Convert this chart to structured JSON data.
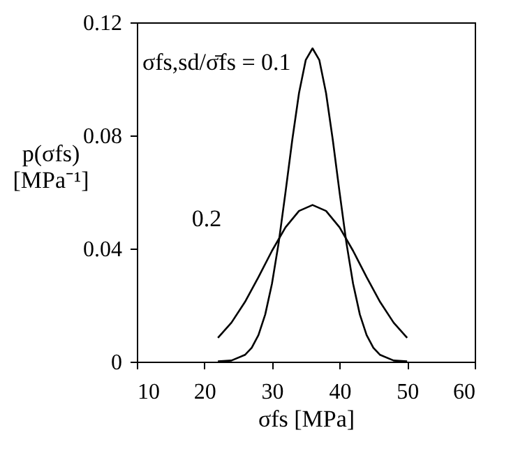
{
  "chart_data": {
    "type": "line",
    "xlabel": "σfs [MPa]",
    "ylabel": "p(σfs) [MPa⁻¹]",
    "xlim": [
      10,
      60
    ],
    "ylim": [
      0,
      0.12
    ],
    "xticks": [
      10,
      20,
      30,
      40,
      50,
      60
    ],
    "yticks": [
      {
        "value": 0,
        "label": "0"
      },
      0.04,
      0.08,
      0.12
    ],
    "grid": false,
    "marker": "none",
    "line_style": "solid",
    "series": [
      {
        "color": "#000000",
        "x": [
          22,
          24,
          26,
          27,
          28,
          29,
          30,
          31,
          32,
          33,
          34,
          35,
          36,
          37,
          38,
          39,
          40,
          41,
          42,
          43,
          44,
          45,
          46,
          48,
          50
        ],
        "values": [
          0.0001,
          0.0004,
          0.0024,
          0.0049,
          0.0094,
          0.0167,
          0.0276,
          0.0422,
          0.0599,
          0.0784,
          0.095,
          0.1067,
          0.1108,
          0.1067,
          0.095,
          0.0784,
          0.0599,
          0.0422,
          0.0276,
          0.0167,
          0.0094,
          0.0049,
          0.0024,
          0.0004,
          0.0001
        ]
      },
      {
        "color": "#000000",
        "x": [
          22,
          24,
          26,
          28,
          30,
          32,
          34,
          36,
          38,
          40,
          42,
          44,
          46,
          48,
          50
        ],
        "values": [
          0.0084,
          0.0138,
          0.0211,
          0.0299,
          0.0392,
          0.0475,
          0.0533,
          0.0554,
          0.0533,
          0.0475,
          0.0392,
          0.0299,
          0.0211,
          0.0138,
          0.0084
        ]
      }
    ],
    "annotations": [
      {
        "text": "σfs,sd/σ̄fs = 0.1",
        "x": 34.2,
        "y": 0.086
      },
      {
        "text": "0.2",
        "x": 29,
        "y": 0.034
      }
    ]
  }
}
